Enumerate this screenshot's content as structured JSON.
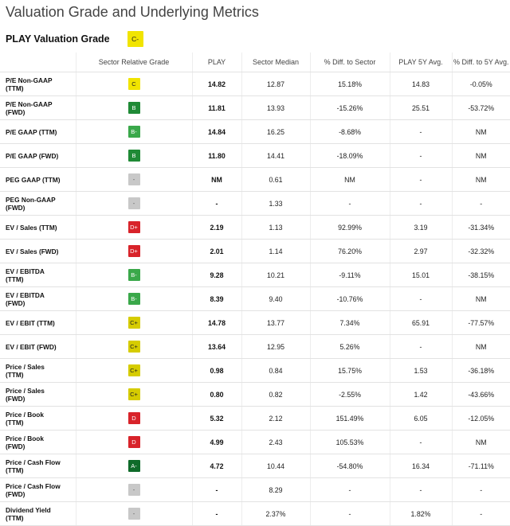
{
  "page": {
    "title": "Valuation Grade and Underlying Metrics"
  },
  "grade_header": {
    "label": "PLAY Valuation Grade",
    "grade": "C-",
    "grade_color": "#f1e400"
  },
  "table": {
    "headers": [
      "",
      "Sector Relative Grade",
      "PLAY",
      "Sector Median",
      "% Diff. to Sector",
      "PLAY 5Y Avg.",
      "% Diff. to 5Y Avg."
    ],
    "rows": [
      {
        "metric": "P/E Non-GAAP\n(TTM)",
        "grade": "C",
        "grade_style": "yellow",
        "play": "14.82",
        "sector_median": "12.87",
        "diff_sector": "15.18%",
        "five_year_avg": "14.83",
        "diff_5y": "-0.05%"
      },
      {
        "metric": "P/E Non-GAAP\n(FWD)",
        "grade": "B",
        "grade_style": "green",
        "play": "11.81",
        "sector_median": "13.93",
        "diff_sector": "-15.26%",
        "five_year_avg": "25.51",
        "diff_5y": "-53.72%"
      },
      {
        "metric": "P/E GAAP (TTM)",
        "grade": "B-",
        "grade_style": "lightgreen",
        "play": "14.84",
        "sector_median": "16.25",
        "diff_sector": "-8.68%",
        "five_year_avg": "-",
        "diff_5y": "NM"
      },
      {
        "metric": "P/E GAAP (FWD)",
        "grade": "B",
        "grade_style": "green",
        "play": "11.80",
        "sector_median": "14.41",
        "diff_sector": "-18.09%",
        "five_year_avg": "-",
        "diff_5y": "NM"
      },
      {
        "metric": "PEG GAAP (TTM)",
        "grade": "-",
        "grade_style": "gray",
        "play": "NM",
        "sector_median": "0.61",
        "diff_sector": "NM",
        "five_year_avg": "-",
        "diff_5y": "NM"
      },
      {
        "metric": "PEG Non-GAAP\n(FWD)",
        "grade": "-",
        "grade_style": "gray",
        "play": "-",
        "sector_median": "1.33",
        "diff_sector": "-",
        "five_year_avg": "-",
        "diff_5y": "-"
      },
      {
        "metric": "EV / Sales (TTM)",
        "grade": "D+",
        "grade_style": "red",
        "play": "2.19",
        "sector_median": "1.13",
        "diff_sector": "92.99%",
        "five_year_avg": "3.19",
        "diff_5y": "-31.34%"
      },
      {
        "metric": "EV / Sales (FWD)",
        "grade": "D+",
        "grade_style": "red",
        "play": "2.01",
        "sector_median": "1.14",
        "diff_sector": "76.20%",
        "five_year_avg": "2.97",
        "diff_5y": "-32.32%"
      },
      {
        "metric": "EV / EBITDA\n(TTM)",
        "grade": "B-",
        "grade_style": "lightgreen",
        "play": "9.28",
        "sector_median": "10.21",
        "diff_sector": "-9.11%",
        "five_year_avg": "15.01",
        "diff_5y": "-38.15%"
      },
      {
        "metric": "EV / EBITDA\n(FWD)",
        "grade": "B-",
        "grade_style": "lightgreen",
        "play": "8.39",
        "sector_median": "9.40",
        "diff_sector": "-10.76%",
        "five_year_avg": "-",
        "diff_5y": "NM"
      },
      {
        "metric": "EV / EBIT (TTM)",
        "grade": "C+",
        "grade_style": "olive",
        "play": "14.78",
        "sector_median": "13.77",
        "diff_sector": "7.34%",
        "five_year_avg": "65.91",
        "diff_5y": "-77.57%"
      },
      {
        "metric": "EV / EBIT (FWD)",
        "grade": "C+",
        "grade_style": "olive",
        "play": "13.64",
        "sector_median": "12.95",
        "diff_sector": "5.26%",
        "five_year_avg": "-",
        "diff_5y": "NM"
      },
      {
        "metric": "Price / Sales\n(TTM)",
        "grade": "C+",
        "grade_style": "olive",
        "play": "0.98",
        "sector_median": "0.84",
        "diff_sector": "15.75%",
        "five_year_avg": "1.53",
        "diff_5y": "-36.18%"
      },
      {
        "metric": "Price / Sales\n(FWD)",
        "grade": "C+",
        "grade_style": "olive",
        "play": "0.80",
        "sector_median": "0.82",
        "diff_sector": "-2.55%",
        "five_year_avg": "1.42",
        "diff_5y": "-43.66%"
      },
      {
        "metric": "Price / Book\n(TTM)",
        "grade": "D",
        "grade_style": "red",
        "play": "5.32",
        "sector_median": "2.12",
        "diff_sector": "151.49%",
        "five_year_avg": "6.05",
        "diff_5y": "-12.05%"
      },
      {
        "metric": "Price / Book\n(FWD)",
        "grade": "D",
        "grade_style": "red",
        "play": "4.99",
        "sector_median": "2.43",
        "diff_sector": "105.53%",
        "five_year_avg": "-",
        "diff_5y": "NM"
      },
      {
        "metric": "Price / Cash Flow\n(TTM)",
        "grade": "A-",
        "grade_style": "darkgreen",
        "play": "4.72",
        "sector_median": "10.44",
        "diff_sector": "-54.80%",
        "five_year_avg": "16.34",
        "diff_5y": "-71.11%"
      },
      {
        "metric": "Price / Cash Flow\n(FWD)",
        "grade": "-",
        "grade_style": "gray",
        "play": "-",
        "sector_median": "8.29",
        "diff_sector": "-",
        "five_year_avg": "-",
        "diff_5y": "-"
      },
      {
        "metric": "Dividend Yield\n(TTM)",
        "grade": "-",
        "grade_style": "gray",
        "play": "-",
        "sector_median": "2.37%",
        "diff_sector": "-",
        "five_year_avg": "1.82%",
        "diff_5y": "-"
      }
    ]
  }
}
